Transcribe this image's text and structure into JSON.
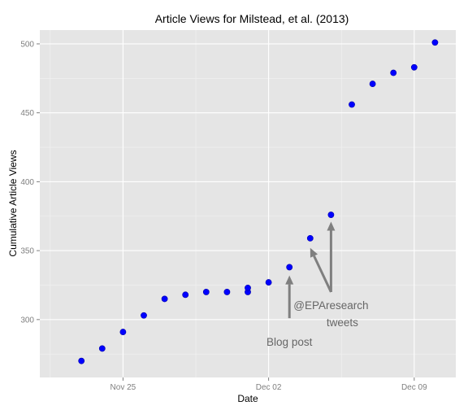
{
  "chart_data": {
    "type": "scatter",
    "title": "Article Views for Milstead, et al. (2013)",
    "xlabel": "Date",
    "ylabel": "Cumulative Article Views",
    "x_axis": {
      "type": "date",
      "range": [
        "2013-11-21",
        "2013-12-11"
      ],
      "ticks": [
        {
          "date": "2013-11-25",
          "label": "Nov 25"
        },
        {
          "date": "2013-12-02",
          "label": "Dec 02"
        },
        {
          "date": "2013-12-09",
          "label": "Dec 09"
        }
      ]
    },
    "y_axis": {
      "range": [
        258,
        510
      ],
      "ticks": [
        300,
        350,
        400,
        450,
        500
      ]
    },
    "grid": true,
    "point_color": "#0000ff",
    "points": [
      {
        "x": "2013-11-23",
        "y": 270
      },
      {
        "x": "2013-11-24",
        "y": 279
      },
      {
        "x": "2013-11-25",
        "y": 291
      },
      {
        "x": "2013-11-26",
        "y": 303
      },
      {
        "x": "2013-11-27",
        "y": 315
      },
      {
        "x": "2013-11-28",
        "y": 318
      },
      {
        "x": "2013-11-29",
        "y": 320
      },
      {
        "x": "2013-11-30",
        "y": 320
      },
      {
        "x": "2013-12-01",
        "y": 320
      },
      {
        "x": "2013-12-01",
        "y": 323
      },
      {
        "x": "2013-12-02",
        "y": 327
      },
      {
        "x": "2013-12-03",
        "y": 338
      },
      {
        "x": "2013-12-04",
        "y": 359
      },
      {
        "x": "2013-12-05",
        "y": 376
      },
      {
        "x": "2013-12-06",
        "y": 456
      },
      {
        "x": "2013-12-07",
        "y": 471
      },
      {
        "x": "2013-12-08",
        "y": 479
      },
      {
        "x": "2013-12-09",
        "y": 483
      },
      {
        "x": "2013-12-10",
        "y": 501
      }
    ],
    "annotations": [
      {
        "id": "blog-post",
        "text": "Blog post",
        "label_at": {
          "x": "2013-12-03",
          "y": 284
        },
        "arrows": [
          {
            "from": {
              "x": "2013-12-03",
              "y": 301
            },
            "to": {
              "x": "2013-12-03",
              "y": 332
            }
          }
        ]
      },
      {
        "id": "tweets",
        "text_lines": [
          "@EPAresearch",
          "tweets"
        ],
        "label_at": {
          "x": "2013-12-05",
          "y": 310
        },
        "arrows": [
          {
            "from": {
              "x": "2013-12-05",
              "y": 320
            },
            "to": {
              "x": "2013-12-05",
              "y": 371
            }
          },
          {
            "from": {
              "x": "2013-12-05",
              "y": 320
            },
            "to": {
              "x": "2013-12-04",
              "y": 352
            }
          }
        ]
      }
    ]
  }
}
